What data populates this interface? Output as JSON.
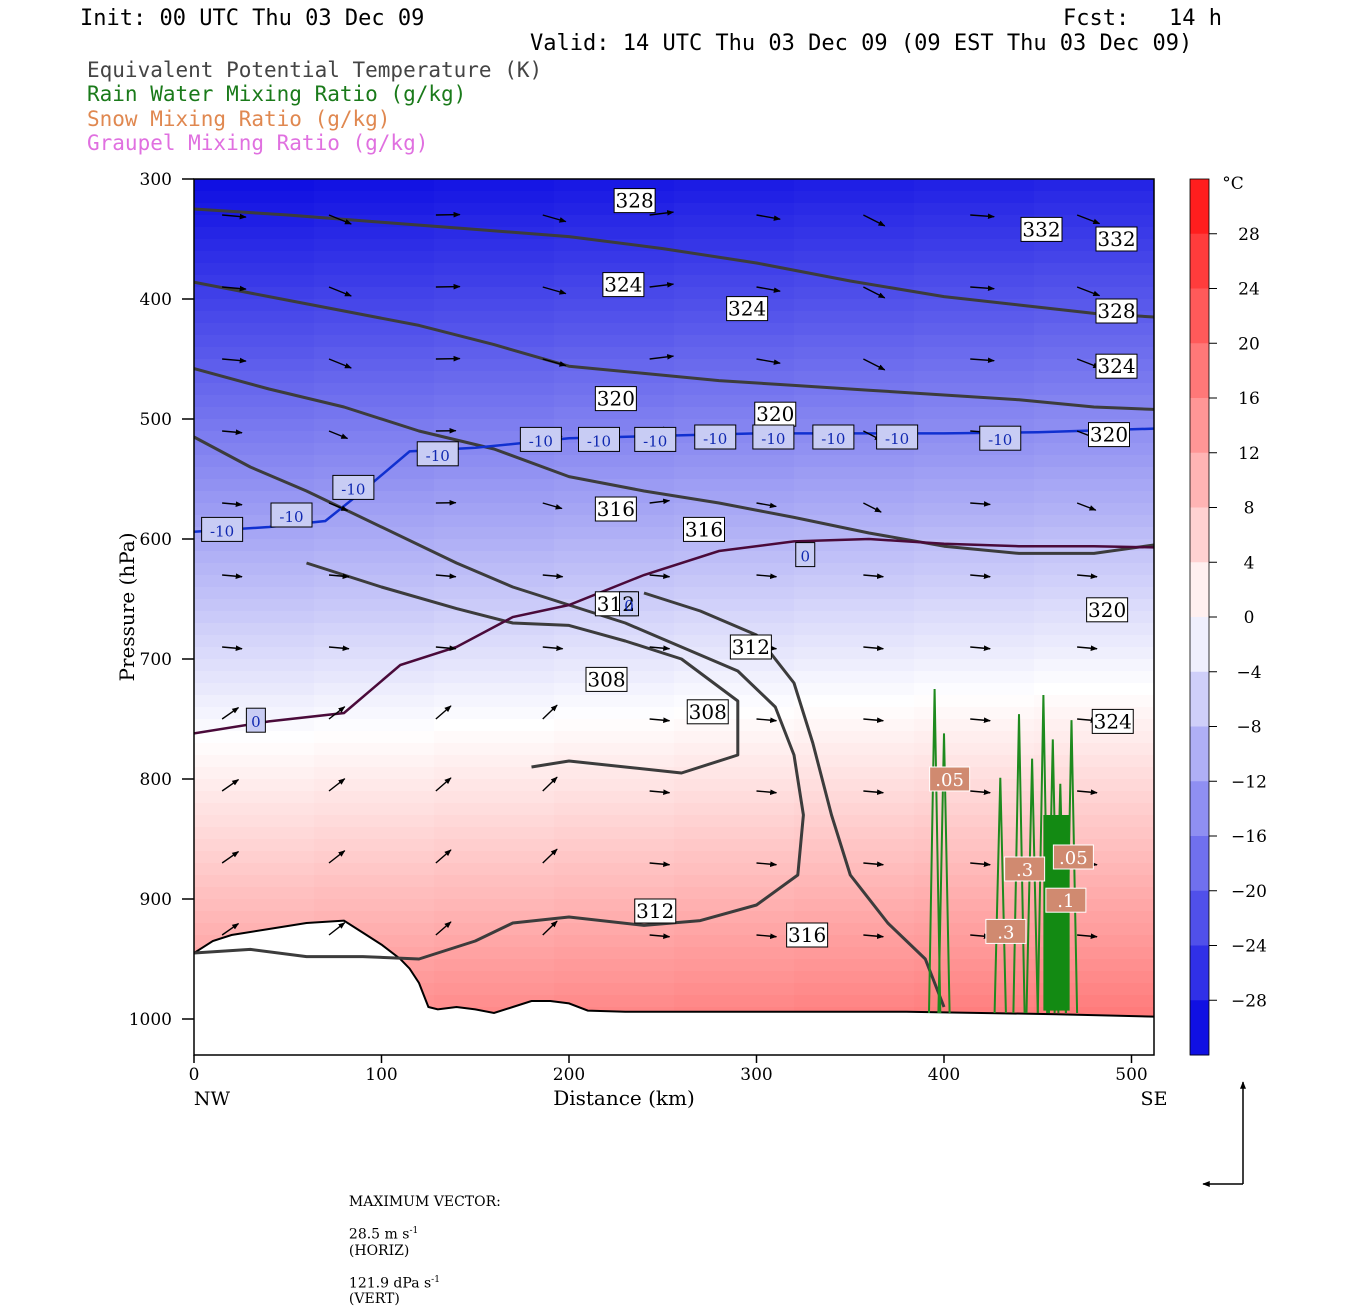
{
  "header": {
    "init": "Init: 00 UTC Thu 03 Dec 09",
    "fcst": "Fcst:   14 h",
    "valid": "Valid: 14 UTC Thu 03 Dec 09 (09 EST Thu 03 Dec 09)"
  },
  "legend": [
    {
      "text": "Equivalent Potential Temperature (K)",
      "color": "#444444"
    },
    {
      "text": "Rain Water Mixing Ratio (g/kg)",
      "color": "#1a7a1a"
    },
    {
      "text": "Snow Mixing Ratio (g/kg)",
      "color": "#e08850"
    },
    {
      "text": "Graupel Mixing Ratio (g/kg)",
      "color": "#e070e0"
    }
  ],
  "chart_data": {
    "type": "cross-section",
    "xlabel": "Distance (km)",
    "ylabel": "Pressure (hPa)",
    "xlim": [
      0,
      512
    ],
    "ylim": [
      1030,
      300
    ],
    "x_ticks": [
      0,
      100,
      200,
      300,
      400,
      500
    ],
    "y_ticks": [
      300,
      400,
      500,
      600,
      700,
      800,
      900,
      1000
    ],
    "left_end_label": "NW",
    "right_end_label": "SE",
    "colorbar": {
      "unit": "°C",
      "ticks": [
        28,
        24,
        20,
        16,
        12,
        8,
        4,
        0,
        -4,
        -8,
        -12,
        -16,
        -20,
        -24,
        -28
      ],
      "range": [
        -32,
        32
      ]
    },
    "theta_e_contours": [
      {
        "value": 328,
        "points": [
          [
            0,
            325
          ],
          [
            50,
            330
          ],
          [
            100,
            336
          ],
          [
            150,
            342
          ],
          [
            200,
            348
          ],
          [
            250,
            358
          ],
          [
            300,
            370
          ],
          [
            350,
            385
          ],
          [
            400,
            398
          ],
          [
            440,
            405
          ],
          [
            480,
            412
          ],
          [
            512,
            415
          ]
        ]
      },
      {
        "value": 324,
        "points": [
          [
            0,
            386
          ],
          [
            40,
            398
          ],
          [
            80,
            410
          ],
          [
            120,
            422
          ],
          [
            160,
            438
          ],
          [
            200,
            456
          ],
          [
            240,
            462
          ],
          [
            280,
            468
          ],
          [
            320,
            472
          ],
          [
            360,
            476
          ],
          [
            400,
            480
          ],
          [
            440,
            484
          ],
          [
            480,
            490
          ],
          [
            512,
            492
          ]
        ]
      },
      {
        "value": 320,
        "points": [
          [
            0,
            458
          ],
          [
            40,
            475
          ],
          [
            80,
            490
          ],
          [
            120,
            510
          ],
          [
            160,
            525
          ],
          [
            200,
            548
          ],
          [
            240,
            560
          ],
          [
            280,
            570
          ],
          [
            320,
            582
          ],
          [
            360,
            595
          ],
          [
            400,
            606
          ],
          [
            440,
            612
          ],
          [
            480,
            612
          ],
          [
            512,
            605
          ]
        ]
      },
      {
        "value": 316,
        "points": [
          [
            0,
            515
          ],
          [
            30,
            540
          ],
          [
            60,
            560
          ],
          [
            100,
            590
          ],
          [
            140,
            620
          ],
          [
            170,
            640
          ],
          [
            200,
            655
          ],
          [
            230,
            670
          ],
          [
            260,
            690
          ],
          [
            290,
            710
          ],
          [
            310,
            740
          ],
          [
            320,
            780
          ],
          [
            325,
            830
          ],
          [
            322,
            880
          ],
          [
            300,
            905
          ],
          [
            270,
            918
          ],
          [
            240,
            922
          ],
          [
            200,
            915
          ],
          [
            170,
            920
          ],
          [
            150,
            935
          ],
          [
            120,
            950
          ],
          [
            90,
            948
          ],
          [
            60,
            948
          ],
          [
            30,
            942
          ],
          [
            0,
            945
          ]
        ]
      },
      {
        "value": 312,
        "points": [
          [
            240,
            645
          ],
          [
            270,
            660
          ],
          [
            300,
            680
          ],
          [
            320,
            720
          ],
          [
            330,
            770
          ],
          [
            340,
            830
          ],
          [
            350,
            880
          ],
          [
            370,
            920
          ],
          [
            390,
            950
          ],
          [
            400,
            990
          ]
        ]
      },
      {
        "value": 308,
        "points": [
          [
            60,
            620
          ],
          [
            100,
            640
          ],
          [
            140,
            658
          ],
          [
            170,
            670
          ],
          [
            200,
            672
          ],
          [
            230,
            685
          ],
          [
            260,
            700
          ],
          [
            290,
            735
          ],
          [
            290,
            780
          ],
          [
            260,
            795
          ],
          [
            230,
            790
          ],
          [
            200,
            785
          ],
          [
            180,
            790
          ]
        ]
      }
    ],
    "isotherms_c": [
      {
        "value": -10,
        "points": [
          [
            0,
            594
          ],
          [
            40,
            590
          ],
          [
            70,
            585
          ],
          [
            90,
            560
          ],
          [
            115,
            527
          ],
          [
            150,
            524
          ],
          [
            200,
            516
          ],
          [
            250,
            514
          ],
          [
            300,
            512
          ],
          [
            350,
            512
          ],
          [
            400,
            512
          ],
          [
            450,
            511
          ],
          [
            512,
            508
          ]
        ]
      },
      {
        "value": 0,
        "points": [
          [
            0,
            762
          ],
          [
            40,
            752
          ],
          [
            80,
            745
          ],
          [
            110,
            705
          ],
          [
            140,
            690
          ],
          [
            170,
            665
          ],
          [
            200,
            655
          ],
          [
            240,
            630
          ],
          [
            280,
            610
          ],
          [
            320,
            602
          ],
          [
            360,
            600
          ],
          [
            400,
            604
          ],
          [
            440,
            606
          ],
          [
            480,
            606
          ],
          [
            512,
            607
          ]
        ]
      }
    ],
    "contour_labels": [
      {
        "text": "328",
        "x": 235,
        "y": 318
      },
      {
        "text": "324",
        "x": 229,
        "y": 388
      },
      {
        "text": "324",
        "x": 295,
        "y": 408
      },
      {
        "text": "332",
        "x": 452,
        "y": 342
      },
      {
        "text": "332",
        "x": 492,
        "y": 350
      },
      {
        "text": "328",
        "x": 492,
        "y": 410
      },
      {
        "text": "324",
        "x": 492,
        "y": 456
      },
      {
        "text": "320",
        "x": 225,
        "y": 483
      },
      {
        "text": "320",
        "x": 310,
        "y": 496
      },
      {
        "text": "320",
        "x": 488,
        "y": 513
      },
      {
        "text": "316",
        "x": 225,
        "y": 575
      },
      {
        "text": "316",
        "x": 272,
        "y": 592
      },
      {
        "text": "312",
        "x": 225,
        "y": 654
      },
      {
        "text": "312",
        "x": 297,
        "y": 690
      },
      {
        "text": "308",
        "x": 220,
        "y": 717
      },
      {
        "text": "308",
        "x": 274,
        "y": 744
      },
      {
        "text": "320",
        "x": 487,
        "y": 659
      },
      {
        "text": "324",
        "x": 490,
        "y": 752
      },
      {
        "text": "312",
        "x": 246,
        "y": 910
      },
      {
        "text": "316",
        "x": 327,
        "y": 930
      },
      {
        "text": "-10",
        "x": 15,
        "y": 592
      },
      {
        "text": "-10",
        "x": 52,
        "y": 580
      },
      {
        "text": "-10",
        "x": 85,
        "y": 557
      },
      {
        "text": "-10",
        "x": 130,
        "y": 529
      },
      {
        "text": "-10",
        "x": 185,
        "y": 517
      },
      {
        "text": "-10",
        "x": 216,
        "y": 517
      },
      {
        "text": "-10",
        "x": 246,
        "y": 517
      },
      {
        "text": "-10",
        "x": 278,
        "y": 515
      },
      {
        "text": "-10",
        "x": 309,
        "y": 515
      },
      {
        "text": "-10",
        "x": 341,
        "y": 515
      },
      {
        "text": "-10",
        "x": 375,
        "y": 515
      },
      {
        "text": "-10",
        "x": 430,
        "y": 516
      },
      {
        "text": "0",
        "x": 33,
        "y": 751
      },
      {
        "text": "0",
        "x": 232,
        "y": 654
      },
      {
        "text": "0",
        "x": 326,
        "y": 613
      }
    ],
    "rain_labels": [
      {
        "text": ".05",
        "x": 403,
        "y": 800
      },
      {
        "text": ".05",
        "x": 469,
        "y": 865
      },
      {
        "text": ".1",
        "x": 465,
        "y": 901
      },
      {
        "text": ".3",
        "x": 443,
        "y": 875
      },
      {
        "text": ".3",
        "x": 433,
        "y": 927
      }
    ],
    "rain_core": {
      "x_range": [
        395,
        468
      ],
      "top_hpa": 725,
      "bottom_hpa": 995
    },
    "terrain": [
      [
        0,
        945
      ],
      [
        10,
        935
      ],
      [
        20,
        930
      ],
      [
        40,
        925
      ],
      [
        60,
        920
      ],
      [
        80,
        918
      ],
      [
        90,
        928
      ],
      [
        100,
        938
      ],
      [
        110,
        950
      ],
      [
        115,
        958
      ],
      [
        120,
        970
      ],
      [
        125,
        990
      ],
      [
        130,
        992
      ],
      [
        140,
        990
      ],
      [
        150,
        992
      ],
      [
        160,
        995
      ],
      [
        170,
        990
      ],
      [
        180,
        985
      ],
      [
        190,
        985
      ],
      [
        200,
        987
      ],
      [
        210,
        993
      ],
      [
        230,
        994
      ],
      [
        260,
        994
      ],
      [
        300,
        994
      ],
      [
        340,
        994
      ],
      [
        380,
        994
      ],
      [
        420,
        995
      ],
      [
        460,
        996
      ],
      [
        512,
        998
      ]
    ],
    "max_vector": {
      "label": "MAXIMUM VECTOR:",
      "horiz": "28.5 m s",
      "horiz_unit": "(HORIZ)",
      "vert": "121.9 dPa s",
      "vert_unit": "(VERT)",
      "exponent": "-1"
    }
  }
}
